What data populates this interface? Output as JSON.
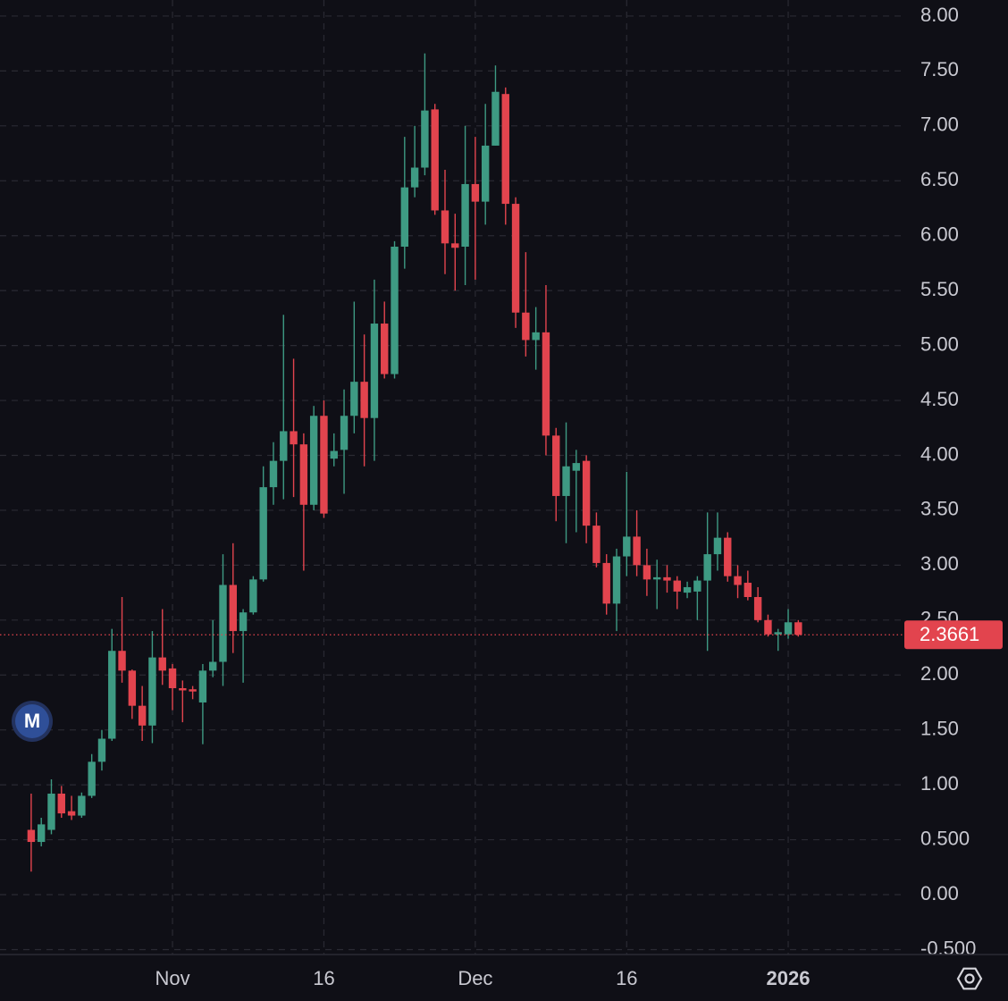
{
  "chart_data": {
    "type": "candlestick",
    "categories": [
      null,
      null,
      null,
      null,
      null,
      null,
      null,
      null,
      null,
      null,
      null,
      null,
      null,
      null,
      "Nov",
      null,
      null,
      null,
      null,
      null,
      null,
      null,
      null,
      null,
      null,
      null,
      null,
      null,
      null,
      "16",
      null,
      null,
      null,
      null,
      null,
      null,
      null,
      null,
      null,
      null,
      null,
      null,
      null,
      null,
      "Dec",
      null,
      null,
      null,
      null,
      null,
      null,
      null,
      null,
      null,
      null,
      null,
      null,
      null,
      null,
      "16",
      null,
      null,
      null,
      null,
      null,
      null,
      null,
      null,
      null,
      null,
      null,
      null,
      null,
      null,
      null,
      "2026",
      null
    ],
    "open": [
      0.59,
      0.48,
      0.59,
      0.92,
      0.76,
      0.72,
      0.9,
      1.21,
      1.42,
      2.22,
      2.04,
      1.72,
      1.54,
      2.16,
      2.06,
      1.88,
      1.87,
      1.75,
      2.04,
      2.12,
      2.82,
      2.4,
      2.57,
      2.87,
      3.71,
      3.95,
      4.22,
      4.1,
      3.55,
      4.36,
      3.97,
      4.05,
      4.36,
      4.67,
      4.34,
      5.2,
      4.74,
      5.9,
      6.44,
      6.62,
      7.15,
      6.23,
      5.93,
      5.9,
      6.47,
      6.31,
      6.82,
      7.29,
      6.29,
      5.3,
      5.05,
      5.12,
      4.18,
      3.63,
      3.86,
      3.95,
      3.36,
      3.02,
      2.65,
      3.08,
      3.26,
      3.0,
      2.87,
      2.89,
      2.86,
      2.75,
      2.76,
      2.86,
      3.1,
      3.25,
      2.9,
      2.84,
      2.71,
      2.5,
      2.37,
      2.37,
      2.48
    ],
    "high": [
      0.92,
      0.7,
      1.05,
      0.99,
      0.9,
      0.93,
      1.28,
      1.5,
      2.42,
      2.71,
      2.05,
      1.9,
      2.4,
      2.6,
      2.1,
      1.95,
      1.9,
      2.1,
      2.5,
      3.1,
      3.2,
      2.6,
      2.9,
      3.9,
      4.12,
      5.28,
      4.88,
      4.2,
      4.45,
      4.5,
      4.2,
      4.6,
      5.4,
      5.1,
      5.6,
      5.4,
      5.95,
      6.9,
      7.0,
      7.66,
      7.2,
      6.6,
      6.2,
      7.0,
      6.9,
      7.2,
      7.55,
      7.35,
      6.35,
      5.85,
      5.35,
      5.55,
      4.25,
      4.3,
      4.05,
      4.0,
      3.48,
      3.1,
      3.15,
      3.85,
      3.5,
      3.15,
      3.05,
      3.0,
      2.9,
      2.85,
      2.9,
      3.48,
      3.48,
      3.3,
      3.0,
      2.95,
      2.8,
      2.55,
      2.42,
      2.6,
      2.5
    ],
    "low": [
      0.21,
      0.44,
      0.55,
      0.7,
      0.68,
      0.7,
      0.88,
      1.13,
      1.4,
      1.93,
      1.6,
      1.4,
      1.38,
      1.91,
      1.68,
      1.57,
      1.78,
      1.37,
      1.98,
      1.9,
      2.2,
      1.93,
      2.55,
      2.85,
      3.55,
      3.6,
      3.62,
      2.95,
      3.5,
      3.43,
      3.9,
      3.65,
      4.2,
      3.9,
      3.95,
      4.7,
      4.7,
      5.7,
      6.35,
      6.55,
      6.19,
      5.65,
      5.5,
      5.55,
      5.6,
      6.1,
      6.82,
      6.1,
      5.16,
      4.9,
      4.78,
      4.0,
      3.4,
      3.2,
      3.3,
      3.2,
      2.98,
      2.55,
      2.4,
      2.9,
      2.9,
      2.72,
      2.6,
      2.75,
      2.6,
      2.7,
      2.5,
      2.22,
      2.95,
      2.85,
      2.7,
      2.68,
      2.48,
      2.35,
      2.22,
      2.33,
      2.35
    ],
    "close": [
      0.48,
      0.64,
      0.92,
      0.74,
      0.72,
      0.9,
      1.21,
      1.42,
      2.22,
      2.04,
      1.72,
      1.54,
      2.16,
      2.04,
      1.88,
      1.86,
      1.85,
      2.04,
      2.12,
      2.82,
      2.4,
      2.57,
      2.87,
      3.71,
      3.95,
      4.22,
      4.1,
      3.55,
      4.36,
      3.47,
      4.04,
      4.36,
      4.67,
      4.34,
      5.2,
      4.74,
      5.9,
      6.44,
      6.62,
      7.14,
      6.23,
      5.93,
      5.89,
      6.47,
      6.31,
      6.82,
      7.31,
      6.29,
      5.3,
      5.05,
      5.12,
      4.18,
      3.63,
      3.9,
      3.93,
      3.36,
      3.02,
      2.65,
      3.08,
      3.26,
      3.0,
      2.87,
      2.89,
      2.86,
      2.76,
      2.8,
      2.86,
      3.1,
      3.25,
      2.9,
      2.82,
      2.71,
      2.5,
      2.37,
      2.39,
      2.48,
      2.3661
    ],
    "up_color": "#3e9a83",
    "down_color": "#e2444e",
    "ylim": [
      -0.545,
      8.146
    ],
    "yticks": [
      {
        "value": 8,
        "label": "8.00"
      },
      {
        "value": 7.5,
        "label": "7.50"
      },
      {
        "value": 7,
        "label": "7.00"
      },
      {
        "value": 6.5,
        "label": "6.50"
      },
      {
        "value": 6,
        "label": "6.00"
      },
      {
        "value": 5.5,
        "label": "5.50"
      },
      {
        "value": 5,
        "label": "5.00"
      },
      {
        "value": 4.5,
        "label": "4.50"
      },
      {
        "value": 4,
        "label": "4.00"
      },
      {
        "value": 3.5,
        "label": "3.50"
      },
      {
        "value": 3,
        "label": "3.00"
      },
      {
        "value": 2.5,
        "label": "2.50"
      },
      {
        "value": 2,
        "label": "2.00"
      },
      {
        "value": 1.5,
        "label": "1.50"
      },
      {
        "value": 1,
        "label": "1.00"
      },
      {
        "value": 0.5,
        "label": "0.500"
      },
      {
        "value": 0,
        "label": "0.00"
      },
      {
        "value": -0.5,
        "label": "-0.500"
      }
    ],
    "grid": true,
    "last_price": 2.3661,
    "badge": "M"
  }
}
